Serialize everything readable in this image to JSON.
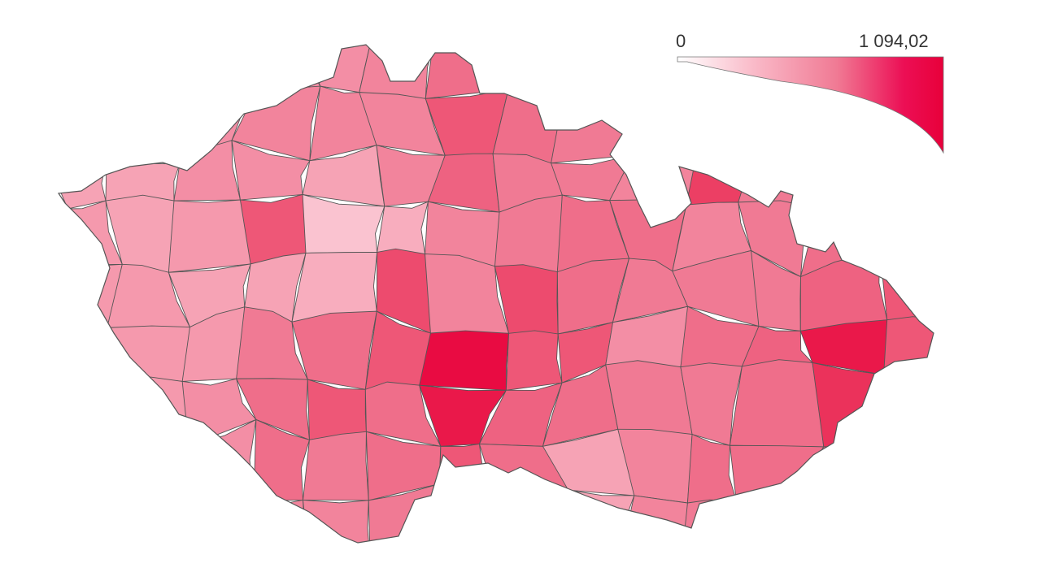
{
  "legend": {
    "min_label": "0",
    "max_label": "1 094,02",
    "min_value": 0,
    "max_value": 1094.02,
    "color_low": "#ffffff",
    "color_high": "#e8003a"
  },
  "chart_data": {
    "type": "choropleth",
    "note_values_grid_west_to_east_north_to_south": true,
    "values": [
      [
        500,
        500,
        500,
        500,
        500,
        550,
        650,
        500,
        500,
        500,
        500,
        500,
        500,
        500
      ],
      [
        450,
        500,
        500,
        550,
        550,
        550,
        750,
        650,
        600,
        550,
        550,
        550,
        550,
        550
      ],
      [
        400,
        400,
        500,
        500,
        400,
        550,
        700,
        600,
        600,
        550,
        850,
        600,
        550,
        550
      ],
      [
        450,
        400,
        450,
        750,
        250,
        350,
        550,
        600,
        650,
        650,
        550,
        600,
        650,
        600
      ],
      [
        450,
        450,
        400,
        400,
        350,
        800,
        550,
        800,
        650,
        600,
        600,
        600,
        700,
        750
      ],
      [
        450,
        450,
        450,
        600,
        650,
        750,
        1050,
        750,
        750,
        500,
        650,
        700,
        1000,
        750
      ],
      [
        450,
        450,
        500,
        650,
        750,
        650,
        1000,
        700,
        650,
        600,
        600,
        650,
        900,
        650
      ],
      [
        500,
        500,
        500,
        650,
        600,
        650,
        750,
        650,
        400,
        550,
        650,
        650,
        600,
        600
      ],
      [
        550,
        550,
        550,
        550,
        550,
        600,
        650,
        450,
        400,
        550,
        600,
        600,
        600,
        600
      ]
    ]
  }
}
